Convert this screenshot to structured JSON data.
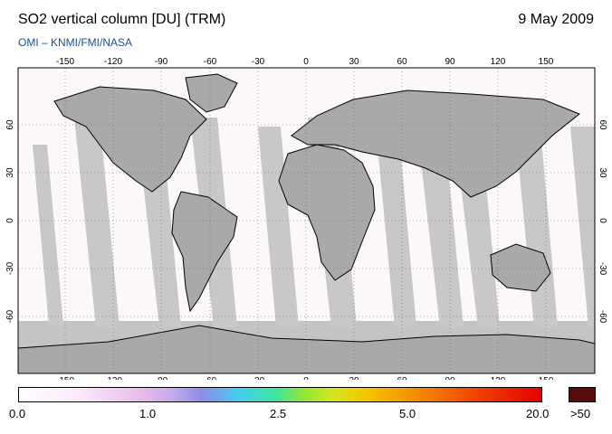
{
  "header": {
    "title": "SO2 vertical column [DU] (TRM)",
    "date": "9 May 2009",
    "credit": "OMI  –  KNMI/FMI/NASA"
  },
  "map": {
    "lon_ticks": [
      "-150",
      "-120",
      "-90",
      "-60",
      "-30",
      "0",
      "30",
      "60",
      "90",
      "120",
      "150"
    ],
    "lat_ticks_left": [
      "60",
      "30",
      "0",
      "-30",
      "-60"
    ],
    "lat_ticks_right": [
      "60",
      "30",
      "0",
      "-30",
      "-60"
    ],
    "no_data_color": "#bdbdbd",
    "land_color": "#a0a0a0"
  },
  "colorbar": {
    "labels": [
      "0.0",
      "1.0",
      "2.5",
      "5.0",
      "20.0",
      ">50"
    ],
    "overflow_color": "#5a0a0a"
  }
}
